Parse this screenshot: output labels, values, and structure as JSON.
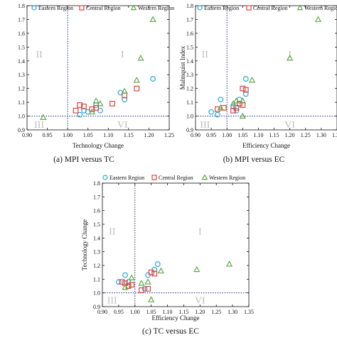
{
  "colors": {
    "eastern": "#2aa8e0",
    "central": "#e0453c",
    "western": "#62a84a",
    "refline": "#1f2c8a",
    "quadrant_label": "#bdbdbd"
  },
  "legend_markers": {
    "Eastern Region": "circle",
    "Central Region": "square",
    "Western Region": "triangle"
  },
  "chart_data": [
    {
      "type": "scatter",
      "caption": "(a) MPI versus TC",
      "xlabel": "Technology Change",
      "ylabel": "",
      "xlim": [
        0.9,
        1.25
      ],
      "ylim": [
        0.9,
        1.8
      ],
      "xticks": [
        "0.90",
        "0.95",
        "1.00",
        "1.05",
        "1.10",
        "1.15",
        "1.20",
        "1.25"
      ],
      "yticks": [
        "0.9",
        "1.0",
        "1.1",
        "1.2",
        "1.3",
        "1.4",
        "1.5",
        "1.6",
        "1.7",
        "1.8"
      ],
      "grid": false,
      "legend": "top",
      "reference_lines": {
        "x": 1.0,
        "y": 1.0
      },
      "quadrant_labels": [
        {
          "text": "II",
          "x": 0.93,
          "y": 1.45
        },
        {
          "text": "I",
          "x": 1.135,
          "y": 1.45
        },
        {
          "text": "III",
          "x": 0.93,
          "y": 0.94
        },
        {
          "text": "VI",
          "x": 1.135,
          "y": 0.94
        }
      ],
      "series": [
        {
          "name": "Eastern Region",
          "marker": "circle",
          "points": [
            [
              1.03,
              1.01
            ],
            [
              1.05,
              1.03
            ],
            [
              1.07,
              1.08
            ],
            [
              1.08,
              1.04
            ],
            [
              1.13,
              1.17
            ],
            [
              1.14,
              1.12
            ],
            [
              1.21,
              1.27
            ],
            [
              1.04,
              1.04
            ]
          ]
        },
        {
          "name": "Central Region",
          "marker": "square",
          "points": [
            [
              1.02,
              1.04
            ],
            [
              1.04,
              1.07
            ],
            [
              1.06,
              1.05
            ],
            [
              1.07,
              1.06
            ],
            [
              1.11,
              1.09
            ],
            [
              1.14,
              1.15
            ],
            [
              1.17,
              1.2
            ],
            [
              1.03,
              1.08
            ]
          ]
        },
        {
          "name": "Western Region",
          "marker": "triangle",
          "points": [
            [
              0.94,
              0.99
            ],
            [
              1.07,
              1.11
            ],
            [
              1.08,
              1.09
            ],
            [
              1.14,
              1.18
            ],
            [
              1.17,
              1.26
            ],
            [
              1.18,
              1.42
            ],
            [
              1.21,
              1.7
            ],
            [
              1.06,
              1.03
            ]
          ]
        }
      ]
    },
    {
      "type": "scatter",
      "caption": "(b) MPI versus EC",
      "xlabel": "Efficiency Change",
      "ylabel": "Malmquist Index",
      "xlim": [
        0.9,
        1.35
      ],
      "ylim": [
        0.9,
        1.8
      ],
      "xticks": [
        "0.90",
        "0.95",
        "1.00",
        "1.05",
        "1.10",
        "1.15",
        "1.20",
        "1.25",
        "1.30",
        "1.35"
      ],
      "yticks": [
        "0.9",
        "1.0",
        "1.1",
        "1.2",
        "1.3",
        "1.4",
        "1.5",
        "1.6",
        "1.7",
        "1.8"
      ],
      "grid": false,
      "legend": "top",
      "reference_lines": {
        "x": 1.0,
        "y": 1.0
      },
      "quadrant_labels": [
        {
          "text": "II",
          "x": 0.93,
          "y": 1.45
        },
        {
          "text": "I",
          "x": 1.2,
          "y": 1.45
        },
        {
          "text": "III",
          "x": 0.93,
          "y": 0.94
        },
        {
          "text": "VI",
          "x": 1.2,
          "y": 0.94
        }
      ],
      "series": [
        {
          "name": "Eastern Region",
          "marker": "circle",
          "points": [
            [
              0.95,
              1.03
            ],
            [
              0.98,
              1.12
            ],
            [
              1.02,
              1.07
            ],
            [
              1.04,
              1.12
            ],
            [
              1.06,
              1.27
            ],
            [
              1.06,
              1.16
            ],
            [
              0.97,
              1.01
            ],
            [
              1.03,
              1.04
            ]
          ]
        },
        {
          "name": "Central Region",
          "marker": "square",
          "points": [
            [
              0.97,
              1.05
            ],
            [
              0.99,
              1.06
            ],
            [
              1.02,
              1.04
            ],
            [
              1.04,
              1.09
            ],
            [
              1.05,
              1.08
            ],
            [
              1.05,
              1.2
            ],
            [
              1.06,
              1.19
            ],
            [
              1.03,
              1.06
            ]
          ]
        },
        {
          "name": "Western Region",
          "marker": "triangle",
          "points": [
            [
              0.98,
              1.06
            ],
            [
              1.02,
              1.09
            ],
            [
              1.03,
              1.11
            ],
            [
              1.05,
              1.0
            ],
            [
              1.08,
              1.26
            ],
            [
              1.2,
              1.42
            ],
            [
              1.29,
              1.7
            ],
            [
              1.05,
              1.11
            ]
          ]
        }
      ]
    },
    {
      "type": "scatter",
      "caption": "(c) TC versus EC",
      "xlabel": "Efficiency Change",
      "ylabel": "Technology Change",
      "xlim": [
        0.9,
        1.35
      ],
      "ylim": [
        0.9,
        1.8
      ],
      "xticks": [
        "0.90",
        "0.95",
        "1.00",
        "1.05",
        "1.10",
        "1.15",
        "1.20",
        "1.25",
        "1.30",
        "1.35"
      ],
      "yticks": [
        "0.9",
        "1.0",
        "1.1",
        "1.2",
        "1.3",
        "1.4",
        "1.5",
        "1.6",
        "1.7",
        "1.8"
      ],
      "grid": false,
      "legend": "top",
      "reference_lines": {
        "x": 1.0,
        "y": 1.0
      },
      "quadrant_labels": [
        {
          "text": "II",
          "x": 0.93,
          "y": 1.45
        },
        {
          "text": "I",
          "x": 1.2,
          "y": 1.45
        },
        {
          "text": "III",
          "x": 0.93,
          "y": 0.95
        },
        {
          "text": "VI",
          "x": 1.2,
          "y": 0.95
        }
      ],
      "series": [
        {
          "name": "Eastern Region",
          "marker": "circle",
          "points": [
            [
              0.95,
              1.08
            ],
            [
              0.97,
              1.13
            ],
            [
              0.98,
              1.08
            ],
            [
              1.03,
              1.03
            ],
            [
              1.04,
              1.13
            ],
            [
              1.06,
              1.17
            ],
            [
              1.07,
              1.21
            ],
            [
              0.98,
              1.05
            ]
          ]
        },
        {
          "name": "Central Region",
          "marker": "square",
          "points": [
            [
              0.96,
              1.08
            ],
            [
              0.98,
              1.05
            ],
            [
              0.99,
              1.06
            ],
            [
              1.02,
              1.02
            ],
            [
              1.04,
              1.03
            ],
            [
              1.05,
              1.15
            ],
            [
              1.06,
              1.14
            ],
            [
              0.97,
              1.07
            ]
          ]
        },
        {
          "name": "Western Region",
          "marker": "triangle",
          "points": [
            [
              0.97,
              1.04
            ],
            [
              1.02,
              1.07
            ],
            [
              1.04,
              1.08
            ],
            [
              1.05,
              0.95
            ],
            [
              1.08,
              1.16
            ],
            [
              1.19,
              1.17
            ],
            [
              1.29,
              1.21
            ],
            [
              0.99,
              1.11
            ]
          ]
        }
      ]
    }
  ]
}
